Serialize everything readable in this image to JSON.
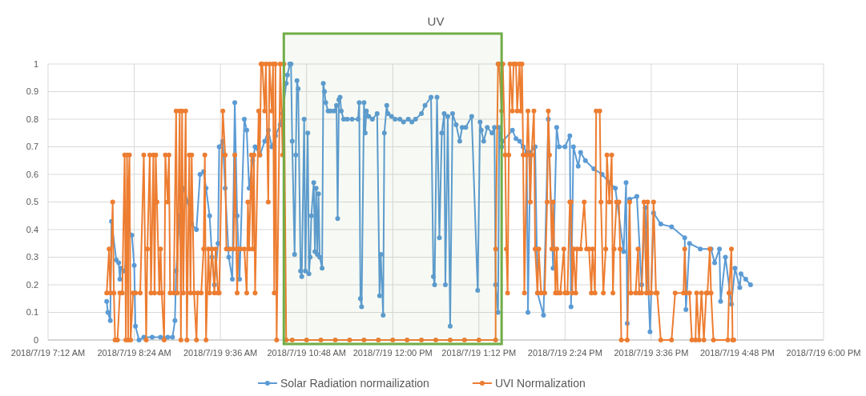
{
  "chart_data": {
    "type": "line",
    "title": "UV",
    "xlim": [
      "2018-07-19T07:12",
      "2018-07-19T18:00"
    ],
    "ylim": [
      0,
      1
    ],
    "xticks": [
      {
        "value": "2018-07-19T07:12",
        "label": "2018/7/19 7:12 AM"
      },
      {
        "value": "2018-07-19T08:24",
        "label": "2018/7/19 8:24 AM"
      },
      {
        "value": "2018-07-19T09:36",
        "label": "2018/7/19 9:36 AM"
      },
      {
        "value": "2018-07-19T10:48",
        "label": "2018/7/19 10:48 AM"
      },
      {
        "value": "2018-07-19T12:00",
        "label": "2018/7/19 12:00 PM"
      },
      {
        "value": "2018-07-19T13:12",
        "label": "2018/7/19 1:12 PM"
      },
      {
        "value": "2018-07-19T14:24",
        "label": "2018/7/19 2:24 PM"
      },
      {
        "value": "2018-07-19T15:36",
        "label": "2018/7/19 3:36 PM"
      },
      {
        "value": "2018-07-19T16:48",
        "label": "2018/7/19 4:48 PM"
      },
      {
        "value": "2018-07-19T18:00",
        "label": "2018/7/19 6:00 PM"
      }
    ],
    "yticks": [
      0,
      0.1,
      0.2,
      0.3,
      0.4,
      0.5,
      0.6,
      0.7,
      0.8,
      0.9,
      1
    ],
    "grid": true,
    "legend": "bottom",
    "marker": "circle",
    "line_style": "solid",
    "bands": [
      {
        "axis": "x",
        "from": "2018-07-19T10:29",
        "to": "2018-07-19T13:31",
        "color": "#70ad47"
      }
    ],
    "series": [
      {
        "name": "Solar Radiation normailization",
        "color": "#5b9bd5",
        "x": [
          "2018-07-19T08:01",
          "2018-07-19T08:02",
          "2018-07-19T08:04",
          "2018-07-19T08:05",
          "2018-07-19T08:09",
          "2018-07-19T08:11",
          "2018-07-19T08:12",
          "2018-07-19T08:13",
          "2018-07-19T08:16",
          "2018-07-19T08:19",
          "2018-07-19T08:22",
          "2018-07-19T08:24",
          "2018-07-19T08:25",
          "2018-07-19T08:28",
          "2018-07-19T08:32",
          "2018-07-19T08:39",
          "2018-07-19T08:46",
          "2018-07-19T08:52",
          "2018-07-19T08:56",
          "2018-07-19T08:58",
          "2018-07-19T08:59",
          "2018-07-19T09:02",
          "2018-07-19T09:05",
          "2018-07-19T09:09",
          "2018-07-19T09:12",
          "2018-07-19T09:16",
          "2018-07-19T09:19",
          "2018-07-19T09:22",
          "2018-07-19T09:24",
          "2018-07-19T09:27",
          "2018-07-19T09:29",
          "2018-07-19T09:31",
          "2018-07-19T09:34",
          "2018-07-19T09:35",
          "2018-07-19T09:38",
          "2018-07-19T09:40",
          "2018-07-19T09:43",
          "2018-07-19T09:46",
          "2018-07-19T09:48",
          "2018-07-19T09:50",
          "2018-07-19T09:52",
          "2018-07-19T09:56",
          "2018-07-19T09:58",
          "2018-07-19T10:00",
          "2018-07-19T10:03",
          "2018-07-19T10:05",
          "2018-07-19T10:09",
          "2018-07-19T10:13",
          "2018-07-19T10:16",
          "2018-07-19T10:19",
          "2018-07-19T10:22",
          "2018-07-19T10:26",
          "2018-07-19T10:28",
          "2018-07-19T10:31",
          "2018-07-19T10:32",
          "2018-07-19T10:34",
          "2018-07-19T10:35",
          "2018-07-19T10:36",
          "2018-07-19T10:38",
          "2018-07-19T10:39",
          "2018-07-19T10:40",
          "2018-07-19T10:41",
          "2018-07-19T10:43",
          "2018-07-19T10:44",
          "2018-07-19T10:46",
          "2018-07-19T10:47",
          "2018-07-19T10:49",
          "2018-07-19T10:50",
          "2018-07-19T10:51",
          "2018-07-19T10:52",
          "2018-07-19T10:54",
          "2018-07-19T10:55",
          "2018-07-19T10:56",
          "2018-07-19T10:57",
          "2018-07-19T10:58",
          "2018-07-19T10:59",
          "2018-07-19T11:01",
          "2018-07-19T11:02",
          "2018-07-19T11:03",
          "2018-07-19T11:04",
          "2018-07-19T11:06",
          "2018-07-19T11:08",
          "2018-07-19T11:11",
          "2018-07-19T11:13",
          "2018-07-19T11:14",
          "2018-07-19T11:15",
          "2018-07-19T11:16",
          "2018-07-19T11:17",
          "2018-07-19T11:19",
          "2018-07-19T11:22",
          "2018-07-19T11:26",
          "2018-07-19T11:31",
          "2018-07-19T11:32",
          "2018-07-19T11:33",
          "2018-07-19T11:34",
          "2018-07-19T11:36",
          "2018-07-19T11:37",
          "2018-07-19T11:38",
          "2018-07-19T11:40",
          "2018-07-19T11:43",
          "2018-07-19T11:47",
          "2018-07-19T11:49",
          "2018-07-19T11:50",
          "2018-07-19T11:52",
          "2018-07-19T11:53",
          "2018-07-19T11:55",
          "2018-07-19T11:56",
          "2018-07-19T11:59",
          "2018-07-19T12:02",
          "2018-07-19T12:06",
          "2018-07-19T12:09",
          "2018-07-19T12:13",
          "2018-07-19T12:16",
          "2018-07-19T12:19",
          "2018-07-19T12:24",
          "2018-07-19T12:27",
          "2018-07-19T12:32",
          "2018-07-19T12:34",
          "2018-07-19T12:35",
          "2018-07-19T12:37",
          "2018-07-19T12:39",
          "2018-07-19T12:41",
          "2018-07-19T12:43",
          "2018-07-19T12:44",
          "2018-07-19T12:46",
          "2018-07-19T12:48",
          "2018-07-19T12:50",
          "2018-07-19T12:53",
          "2018-07-19T12:56",
          "2018-07-19T12:58",
          "2018-07-19T13:01",
          "2018-07-19T13:06",
          "2018-07-19T13:11",
          "2018-07-19T13:13",
          "2018-07-19T13:14",
          "2018-07-19T13:16",
          "2018-07-19T13:19",
          "2018-07-19T13:23",
          "2018-07-19T13:25",
          "2018-07-19T13:26",
          "2018-07-19T13:28",
          "2018-07-19T13:29",
          "2018-07-19T13:31",
          "2018-07-19T13:32",
          "2018-07-19T13:40",
          "2018-07-19T13:43",
          "2018-07-19T13:46",
          "2018-07-19T13:49",
          "2018-07-19T13:52",
          "2018-07-19T13:53",
          "2018-07-19T13:55",
          "2018-07-19T13:59",
          "2018-07-19T14:01",
          "2018-07-19T14:06",
          "2018-07-19T14:10",
          "2018-07-19T14:14",
          "2018-07-19T14:17",
          "2018-07-19T14:19",
          "2018-07-19T14:24",
          "2018-07-19T14:28",
          "2018-07-19T14:29",
          "2018-07-19T14:31",
          "2018-07-19T14:35",
          "2018-07-19T14:37",
          "2018-07-19T14:41",
          "2018-07-19T14:48",
          "2018-07-19T14:55",
          "2018-07-19T15:01",
          "2018-07-19T15:06",
          "2018-07-19T15:13",
          "2018-07-19T15:15",
          "2018-07-19T15:16",
          "2018-07-19T15:18",
          "2018-07-19T15:24",
          "2018-07-19T15:28",
          "2018-07-19T15:31",
          "2018-07-19T15:35",
          "2018-07-19T15:38",
          "2018-07-19T15:44",
          "2018-07-19T15:53",
          "2018-07-19T16:04",
          "2018-07-19T16:05",
          "2018-07-19T16:08",
          "2018-07-19T16:17",
          "2018-07-19T16:26",
          "2018-07-19T16:29",
          "2018-07-19T16:33",
          "2018-07-19T16:34",
          "2018-07-19T16:38",
          "2018-07-19T16:43",
          "2018-07-19T16:46",
          "2018-07-19T16:50",
          "2018-07-19T16:51",
          "2018-07-19T16:55",
          "2018-07-19T16:59"
        ],
        "values": [
          0.14,
          0.1,
          0.07,
          0.43,
          0.29,
          0.28,
          0.22,
          0.26,
          0.25,
          0.4,
          0.38,
          0.27,
          0.05,
          0,
          0.01,
          0.01,
          0.01,
          0.01,
          0.01,
          0.07,
          0.25,
          0.45,
          0.55,
          0.5,
          0.42,
          0.4,
          0.6,
          0.61,
          0.55,
          0.45,
          0.3,
          0.2,
          0.35,
          0.7,
          0.72,
          0.55,
          0.3,
          0.22,
          0.86,
          0.45,
          0.22,
          0.8,
          0.76,
          0.55,
          0.65,
          0.7,
          0.67,
          0.72,
          0.76,
          0.7,
          0.74,
          0.78,
          0.82,
          0.93,
          0.96,
          1,
          1,
          0.72,
          0.31,
          0.67,
          0.94,
          0.91,
          0.25,
          0.23,
          0.8,
          0.25,
          0.75,
          0.24,
          0.3,
          0.45,
          0.57,
          0.32,
          0.55,
          0.31,
          0.53,
          0.3,
          0.26,
          0.93,
          0.9,
          0.86,
          0.83,
          0.83,
          0.83,
          0.85,
          0.44,
          0.87,
          0.88,
          0.83,
          0.8,
          0.8,
          0.8,
          0.8,
          0.86,
          0.15,
          0.12,
          0.86,
          0.75,
          0.83,
          0.81,
          0.8,
          0.82,
          0.16,
          0.31,
          0.09,
          0.75,
          0.85,
          0.82,
          0.81,
          0.8,
          0.8,
          0.79,
          0.8,
          0.79,
          0.8,
          0.82,
          0.85,
          0.88,
          0.23,
          0.2,
          0.88,
          0.37,
          0.75,
          0.82,
          0.2,
          0.81,
          0.05,
          0.82,
          0.78,
          0.72,
          0.77,
          0.77,
          0.81,
          0.18,
          0.79,
          0.76,
          0.72,
          0.77,
          0.75,
          0.77,
          0.2,
          0.1,
          0.77,
          0.7,
          0.72,
          0.76,
          0.73,
          0.72,
          0.7,
          0.68,
          0.1,
          0.68,
          0.7,
          0.17,
          0.09,
          0.8,
          0.26,
          0.77,
          0.7,
          0.7,
          0.74,
          0.12,
          0.7,
          0.63,
          0.68,
          0.65,
          0.62,
          0.6,
          0.57,
          0.55,
          0.32,
          0.57,
          0.06,
          0.51,
          0.52,
          0.2,
          0.48,
          0.03,
          0.46,
          0.42,
          0.41,
          0.37,
          0.11,
          0.35,
          0.33,
          0.33,
          0.28,
          0.33,
          0.14,
          0.3,
          0.13,
          0.26,
          0.19,
          0.24,
          0.22,
          0.2
        ]
      },
      {
        "name": "UVI Normalization",
        "color": "#ed7d31",
        "x": [
          "2018-07-19T08:01",
          "2018-07-19T08:03",
          "2018-07-19T08:04",
          "2018-07-19T08:06",
          "2018-07-19T08:07",
          "2018-07-19T08:08",
          "2018-07-19T08:10",
          "2018-07-19T08:12",
          "2018-07-19T08:14",
          "2018-07-19T08:16",
          "2018-07-19T08:17",
          "2018-07-19T08:18",
          "2018-07-19T08:19",
          "2018-07-19T08:19",
          "2018-07-19T08:20",
          "2018-07-19T08:21",
          "2018-07-19T08:23",
          "2018-07-19T08:25",
          "2018-07-19T08:29",
          "2018-07-19T08:32",
          "2018-07-19T08:34",
          "2018-07-19T08:35",
          "2018-07-19T08:37",
          "2018-07-19T08:38",
          "2018-07-19T08:40",
          "2018-07-19T08:41",
          "2018-07-19T08:42",
          "2018-07-19T08:43",
          "2018-07-19T08:45",
          "2018-07-19T08:46",
          "2018-07-19T08:47",
          "2018-07-19T08:49",
          "2018-07-19T08:50",
          "2018-07-19T08:52",
          "2018-07-19T08:53",
          "2018-07-19T08:54",
          "2018-07-19T08:57",
          "2018-07-19T08:59",
          "2018-07-19T09:00",
          "2018-07-19T09:02",
          "2018-07-19T09:03",
          "2018-07-19T09:04",
          "2018-07-19T09:05",
          "2018-07-19T09:07",
          "2018-07-19T09:08",
          "2018-07-19T09:10",
          "2018-07-19T09:11",
          "2018-07-19T09:12",
          "2018-07-19T09:14",
          "2018-07-19T09:16",
          "2018-07-19T09:17",
          "2018-07-19T09:20",
          "2018-07-19T09:22",
          "2018-07-19T09:23",
          "2018-07-19T09:24",
          "2018-07-19T09:26",
          "2018-07-19T09:27",
          "2018-07-19T09:29",
          "2018-07-19T09:31",
          "2018-07-19T09:32",
          "2018-07-19T09:34",
          "2018-07-19T09:35",
          "2018-07-19T09:38",
          "2018-07-19T09:40",
          "2018-07-19T09:41",
          "2018-07-19T09:44",
          "2018-07-19T09:47",
          "2018-07-19T09:48",
          "2018-07-19T09:50",
          "2018-07-19T09:51",
          "2018-07-19T09:53",
          "2018-07-19T09:56",
          "2018-07-19T09:58",
          "2018-07-19T09:59",
          "2018-07-19T10:00",
          "2018-07-19T10:02",
          "2018-07-19T10:03",
          "2018-07-19T10:04",
          "2018-07-19T10:05",
          "2018-07-19T10:08",
          "2018-07-19T10:09",
          "2018-07-19T10:10",
          "2018-07-19T10:11",
          "2018-07-19T10:13",
          "2018-07-19T10:14",
          "2018-07-19T10:16",
          "2018-07-19T10:17",
          "2018-07-19T10:19",
          "2018-07-19T10:20",
          "2018-07-19T10:21",
          "2018-07-19T10:22",
          "2018-07-19T10:23",
          "2018-07-19T10:26",
          "2018-07-19T10:28",
          "2018-07-19T10:29",
          "2018-07-19T10:31",
          "2018-07-19T10:36",
          "2018-07-19T10:48",
          "2018-07-19T11:00",
          "2018-07-19T11:12",
          "2018-07-19T11:24",
          "2018-07-19T11:36",
          "2018-07-19T11:48",
          "2018-07-19T12:00",
          "2018-07-19T12:12",
          "2018-07-19T12:24",
          "2018-07-19T12:36",
          "2018-07-19T12:48",
          "2018-07-19T13:00",
          "2018-07-19T13:12",
          "2018-07-19T13:26",
          "2018-07-19T13:26",
          "2018-07-19T13:28",
          "2018-07-19T13:29",
          "2018-07-19T13:31",
          "2018-07-19T13:32",
          "2018-07-19T13:34",
          "2018-07-19T13:35",
          "2018-07-19T13:36",
          "2018-07-19T13:37",
          "2018-07-19T13:38",
          "2018-07-19T13:40",
          "2018-07-19T13:41",
          "2018-07-19T13:43",
          "2018-07-19T13:44",
          "2018-07-19T13:46",
          "2018-07-19T13:47",
          "2018-07-19T13:48",
          "2018-07-19T13:49",
          "2018-07-19T13:50",
          "2018-07-19T13:52",
          "2018-07-19T13:53",
          "2018-07-19T13:55",
          "2018-07-19T13:56",
          "2018-07-19T13:58",
          "2018-07-19T13:59",
          "2018-07-19T14:01",
          "2018-07-19T14:02",
          "2018-07-19T14:04",
          "2018-07-19T14:07",
          "2018-07-19T14:09",
          "2018-07-19T14:10",
          "2018-07-19T14:11",
          "2018-07-19T14:13",
          "2018-07-19T14:14",
          "2018-07-19T14:16",
          "2018-07-19T14:17",
          "2018-07-19T14:18",
          "2018-07-19T14:20",
          "2018-07-19T14:23",
          "2018-07-19T14:24",
          "2018-07-19T14:26",
          "2018-07-19T14:28",
          "2018-07-19T14:29",
          "2018-07-19T14:30",
          "2018-07-19T14:31",
          "2018-07-19T14:33",
          "2018-07-19T14:34",
          "2018-07-19T14:37",
          "2018-07-19T14:40",
          "2018-07-19T14:42",
          "2018-07-19T14:44",
          "2018-07-19T14:46",
          "2018-07-19T14:47",
          "2018-07-19T14:49",
          "2018-07-19T14:50",
          "2018-07-19T14:53",
          "2018-07-19T14:54",
          "2018-07-19T14:56",
          "2018-07-19T14:58",
          "2018-07-19T14:59",
          "2018-07-19T15:01",
          "2018-07-19T15:03",
          "2018-07-19T15:04",
          "2018-07-19T15:05",
          "2018-07-19T15:07",
          "2018-07-19T15:09",
          "2018-07-19T15:10",
          "2018-07-19T15:11",
          "2018-07-19T15:16",
          "2018-07-19T15:18",
          "2018-07-19T15:19",
          "2018-07-19T15:23",
          "2018-07-19T15:25",
          "2018-07-19T15:26",
          "2018-07-19T15:28",
          "2018-07-19T15:30",
          "2018-07-19T15:32",
          "2018-07-19T15:33",
          "2018-07-19T15:34",
          "2018-07-19T15:36",
          "2018-07-19T15:38",
          "2018-07-19T15:40",
          "2018-07-19T15:41",
          "2018-07-19T15:44",
          "2018-07-19T15:53",
          "2018-07-19T15:56",
          "2018-07-19T16:03",
          "2018-07-19T16:04",
          "2018-07-19T16:05",
          "2018-07-19T16:08",
          "2018-07-19T16:10",
          "2018-07-19T16:13",
          "2018-07-19T16:14",
          "2018-07-19T16:16",
          "2018-07-19T16:18",
          "2018-07-19T16:20",
          "2018-07-19T16:22",
          "2018-07-19T16:23",
          "2018-07-19T16:25",
          "2018-07-19T16:26",
          "2018-07-19T16:28",
          "2018-07-19T16:40",
          "2018-07-19T16:41",
          "2018-07-19T16:43",
          "2018-07-19T16:44",
          "2018-07-19T16:45"
        ],
        "values": [
          0.17,
          0.33,
          0.17,
          0.5,
          0.17,
          0,
          0,
          0.17,
          0.17,
          0.67,
          0,
          0.67,
          0,
          0.5,
          0.67,
          0,
          0.17,
          0.17,
          0.17,
          0.67,
          0,
          0.33,
          0.67,
          0.17,
          0.67,
          0.17,
          0.67,
          0.5,
          0.17,
          0.33,
          0.17,
          0,
          0.67,
          0.5,
          0.67,
          0.17,
          0.17,
          0.83,
          0.17,
          0.83,
          0,
          0.83,
          0.17,
          0.83,
          0,
          0.67,
          0.17,
          0.67,
          0.17,
          0,
          0.17,
          0.17,
          0.33,
          0.67,
          0,
          0.33,
          0.17,
          0.33,
          0.17,
          0.33,
          0.17,
          0.17,
          0.83,
          0.67,
          0.33,
          0.33,
          0.33,
          0.67,
          0.17,
          0.33,
          0.33,
          0.33,
          0.17,
          0.5,
          0.33,
          0.67,
          0.33,
          0.67,
          0.17,
          0.83,
          0.67,
          1,
          1,
          0.83,
          1,
          0.5,
          1,
          0.83,
          1,
          0.17,
          1,
          0,
          1,
          0.67,
          1,
          0,
          0,
          0,
          0,
          0,
          0,
          0,
          0,
          0,
          0,
          0,
          0,
          0,
          0,
          0,
          0,
          0.33,
          1,
          1,
          0.83,
          1,
          0.67,
          0.33,
          0.17,
          0.67,
          1,
          0.83,
          1,
          1,
          0.83,
          1,
          0.83,
          1,
          0.67,
          0.17,
          0.67,
          0.83,
          0.5,
          0.67,
          0.83,
          0.33,
          0.17,
          0.33,
          0.17,
          0.17,
          0.5,
          0.83,
          0.67,
          0.33,
          0.5,
          0.17,
          0.33,
          0.17,
          0.17,
          0.33,
          0.17,
          0.17,
          0.5,
          0.5,
          0.17,
          0.33,
          0.17,
          0.33,
          0.33,
          0.5,
          0.33,
          0.33,
          0.17,
          0.33,
          0.17,
          0.83,
          0.83,
          0.5,
          0.17,
          0.33,
          0.67,
          0.5,
          0.67,
          0.17,
          0.33,
          0.5,
          0.5,
          0.33,
          0,
          0,
          0.5,
          0.17,
          0.17,
          0.33,
          0.17,
          0.17,
          0.5,
          0.17,
          0.5,
          0.17,
          0.17,
          0.5,
          0.17,
          0.17,
          0,
          0,
          0.17,
          0.17,
          0.33,
          0.17,
          0.17,
          0,
          0,
          0.17,
          0,
          0.17,
          0,
          0.17,
          0.17,
          0.33,
          0.17,
          0,
          0,
          0.17,
          0.33,
          0,
          0
        ]
      }
    ]
  }
}
